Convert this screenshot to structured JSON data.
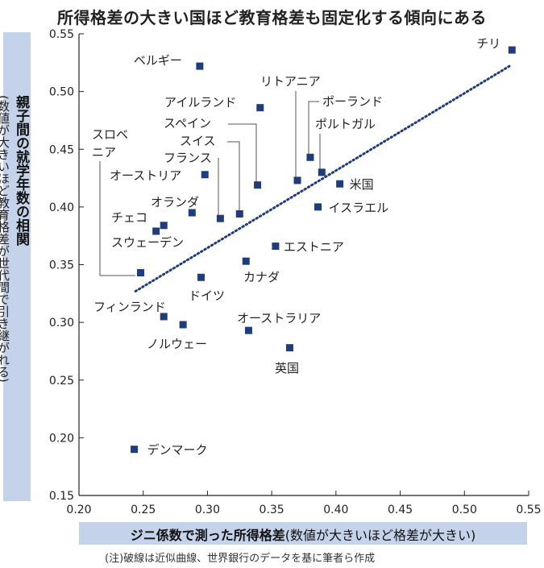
{
  "chart_data": {
    "type": "scatter",
    "title": "所得格差の大きい国ほど教育格差も固定化する傾向にある",
    "ylabel": "親子間の就学年数の相関",
    "ylabel_note": "(数値が大きいほど教育格差が世代間で引き継がれる)",
    "xlabel": "ジニ係数で測った所得格差",
    "xlabel_note": "(数値が大きいほど格差が大きい)",
    "note": "(注)破線は近似曲線、世界銀行のデータを基に筆者ら作成",
    "xlim": [
      0.2,
      0.55
    ],
    "ylim": [
      0.15,
      0.55
    ],
    "x_ticks": [
      "0.20",
      "0.25",
      "0.30",
      "0.35",
      "0.40",
      "0.45",
      "0.50",
      "0.55"
    ],
    "y_ticks": [
      "0.15",
      "0.20",
      "0.25",
      "0.30",
      "0.35",
      "0.40",
      "0.45",
      "0.50",
      "0.55"
    ],
    "marker_color": "#1f3d7a",
    "trendline": {
      "style": "dotted",
      "x": [
        0.244,
        0.535
      ],
      "y": [
        0.327,
        0.522
      ]
    },
    "points": [
      {
        "name": "チリ",
        "x": 0.537,
        "y": 0.536
      },
      {
        "name": "ベルギー",
        "x": 0.294,
        "y": 0.522
      },
      {
        "name": "リトアニア",
        "x": 0.37,
        "y": 0.423
      },
      {
        "name": "アイルランド",
        "x": 0.341,
        "y": 0.486
      },
      {
        "name": "ポーランド",
        "x": 0.389,
        "y": 0.43
      },
      {
        "name": "スペイン",
        "x": 0.339,
        "y": 0.419
      },
      {
        "name": "ポルトガル",
        "x": 0.38,
        "y": 0.443
      },
      {
        "name": "スイス",
        "x": 0.325,
        "y": 0.394
      },
      {
        "name": "フランス",
        "x": 0.31,
        "y": 0.39
      },
      {
        "name": "オーストリア",
        "x": 0.298,
        "y": 0.428
      },
      {
        "name": "米国",
        "x": 0.403,
        "y": 0.42
      },
      {
        "name": "オランダ",
        "x": 0.288,
        "y": 0.395
      },
      {
        "name": "イスラエル",
        "x": 0.386,
        "y": 0.4
      },
      {
        "name": "チェコ",
        "x": 0.266,
        "y": 0.384
      },
      {
        "name": "スウェーデン",
        "x": 0.26,
        "y": 0.379
      },
      {
        "name": "スロベニア",
        "x": 0.248,
        "y": 0.343
      },
      {
        "name": "エストニア",
        "x": 0.353,
        "y": 0.366
      },
      {
        "name": "カナダ",
        "x": 0.33,
        "y": 0.353
      },
      {
        "name": "ドイツ",
        "x": 0.295,
        "y": 0.339
      },
      {
        "name": "フィンランド",
        "x": 0.266,
        "y": 0.305
      },
      {
        "name": "ノルウェー",
        "x": 0.281,
        "y": 0.298
      },
      {
        "name": "オーストラリア",
        "x": 0.332,
        "y": 0.293
      },
      {
        "name": "英国",
        "x": 0.364,
        "y": 0.278
      },
      {
        "name": "デンマーク",
        "x": 0.243,
        "y": 0.19
      }
    ]
  }
}
